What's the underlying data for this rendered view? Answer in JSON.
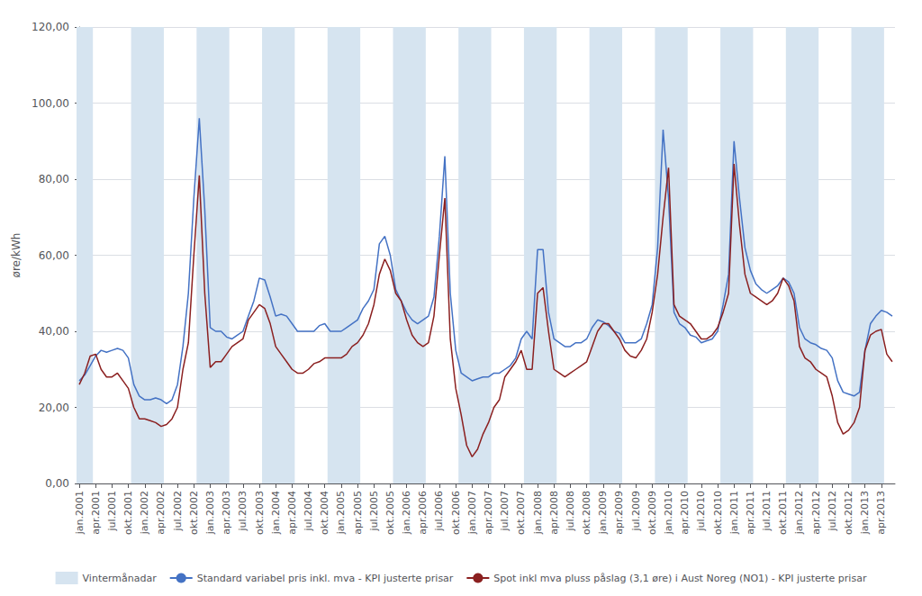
{
  "chart_data": {
    "type": "line",
    "ylabel": "øre/kWh",
    "ylim": [
      0,
      120
    ],
    "yticks": [
      {
        "value": 0,
        "label": "0,00"
      },
      {
        "value": 20,
        "label": "20,00"
      },
      {
        "value": 40,
        "label": "40,00"
      },
      {
        "value": 60,
        "label": "60,00"
      },
      {
        "value": 80,
        "label": "80,00"
      },
      {
        "value": 100,
        "label": "100,00"
      },
      {
        "value": 120,
        "label": "120,00"
      }
    ],
    "grid": true,
    "legend": "bottom",
    "categories": [
      "jan.2001",
      null,
      null,
      "apr.2001",
      null,
      null,
      "jul.2001",
      null,
      null,
      "okt.2001",
      null,
      null,
      "jan.2002",
      null,
      null,
      "apr.2002",
      null,
      null,
      "jul.2002",
      null,
      null,
      "okt.2002",
      null,
      null,
      "jan.2003",
      null,
      null,
      "apr.2003",
      null,
      null,
      "jul.2003",
      null,
      null,
      "okt.2003",
      null,
      null,
      "jan.2004",
      null,
      null,
      "apr.2004",
      null,
      null,
      "jul.2004",
      null,
      null,
      "okt.2004",
      null,
      null,
      "jan.2005",
      null,
      null,
      "apr.2005",
      null,
      null,
      "jul.2005",
      null,
      null,
      "okt.2005",
      null,
      null,
      "jan.2006",
      null,
      null,
      "apr.2006",
      null,
      null,
      "jul.2006",
      null,
      null,
      "okt.2006",
      null,
      null,
      "jan.2007",
      null,
      null,
      "apr.2007",
      null,
      null,
      "jul.2007",
      null,
      null,
      "okt.2007",
      null,
      null,
      "jan.2008",
      null,
      null,
      "apr.2008",
      null,
      null,
      "jul.2008",
      null,
      null,
      "okt.2008",
      null,
      null,
      "jan.2009",
      null,
      null,
      "apr.2009",
      null,
      null,
      "jul.2009",
      null,
      null,
      "okt.2009",
      null,
      null,
      "jan.2010",
      null,
      null,
      "apr.2010",
      null,
      null,
      "jul.2010",
      null,
      null,
      "okt.2010",
      null,
      null,
      "jan.2011",
      null,
      null,
      "apr.2011",
      null,
      null,
      "jul.2011",
      null,
      null,
      "okt.2011",
      null,
      null,
      "jan.2012",
      null,
      null,
      "apr.2012",
      null,
      null,
      "jul.2012",
      null,
      null,
      "okt.2012",
      null,
      null,
      "jan.2013",
      null,
      null,
      "apr.2013",
      null,
      null
    ],
    "series": [
      {
        "name": "Vintermånadar",
        "type": "span",
        "color": "#d6e4f0",
        "spans": [
          [
            -0.5,
            2.5
          ],
          [
            9.5,
            15.5
          ],
          [
            21.5,
            27.5
          ],
          [
            33.5,
            39.5
          ],
          [
            45.5,
            51.5
          ],
          [
            57.5,
            63.5
          ],
          [
            69.5,
            75.5
          ],
          [
            81.5,
            87.5
          ],
          [
            93.5,
            99.5
          ],
          [
            105.5,
            111.5
          ],
          [
            117.5,
            123.5
          ],
          [
            129.5,
            135.5
          ],
          [
            141.5,
            147.5
          ]
        ]
      },
      {
        "name": "Standard variabel pris inkl. mva - KPI justerte prisar",
        "type": "line",
        "color": "#4472C4",
        "values": [
          27.0,
          28.5,
          31.0,
          33.5,
          35.0,
          34.5,
          35.0,
          35.5,
          35.0,
          33.0,
          26.0,
          23.0,
          22.0,
          22.0,
          22.5,
          22.0,
          21.0,
          22.0,
          26.0,
          36.0,
          50.0,
          75.0,
          96.0,
          72.0,
          41.0,
          40.0,
          40.0,
          38.5,
          38.0,
          39.0,
          40.0,
          44.0,
          48.0,
          54.0,
          53.5,
          49.0,
          44.0,
          44.5,
          44.0,
          42.0,
          40.0,
          40.0,
          40.0,
          40.0,
          41.5,
          42.0,
          40.0,
          40.0,
          40.0,
          41.0,
          42.0,
          43.0,
          46.0,
          48.0,
          51.0,
          63.0,
          65.0,
          60.0,
          51.0,
          48.0,
          45.0,
          43.0,
          42.0,
          43.0,
          44.0,
          49.0,
          65.0,
          86.0,
          50.0,
          35.0,
          29.0,
          28.0,
          27.0,
          27.5,
          28.0,
          28.0,
          29.0,
          29.0,
          30.0,
          31.0,
          33.0,
          38.0,
          40.0,
          38.0,
          61.5,
          61.5,
          45.0,
          38.0,
          37.0,
          36.0,
          36.0,
          37.0,
          37.0,
          38.0,
          41.0,
          43.0,
          42.5,
          41.5,
          40.0,
          39.5,
          37.0,
          37.0,
          37.0,
          38.0,
          42.0,
          47.0,
          62.0,
          93.0,
          75.0,
          45.0,
          42.0,
          41.0,
          39.0,
          38.5,
          37.0,
          37.5,
          38.0,
          40.0,
          47.0,
          55.0,
          90.0,
          75.0,
          62.0,
          56.0,
          52.5,
          51.0,
          50.0,
          51.0,
          52.0,
          54.0,
          53.0,
          50.0,
          41.0,
          38.0,
          37.0,
          36.5,
          35.5,
          35.0,
          33.0,
          27.0,
          24.0,
          23.5,
          23.0,
          24.0,
          35.0,
          42.0,
          44.0,
          45.5,
          45.0,
          44.0
        ]
      },
      {
        "name": "Spot inkl mva pluss påslag (3,1 øre) i Aust Noreg (NO1) - KPI justerte prisar",
        "type": "line",
        "color": "#8B2020",
        "values": [
          26.0,
          29.0,
          33.5,
          34.0,
          30.0,
          28.0,
          28.0,
          29.0,
          27.0,
          25.0,
          20.0,
          17.0,
          17.0,
          16.5,
          16.0,
          15.0,
          15.5,
          17.0,
          20.0,
          30.0,
          37.0,
          60.0,
          81.0,
          50.0,
          30.5,
          32.0,
          32.0,
          34.0,
          36.0,
          37.0,
          38.0,
          43.0,
          45.0,
          47.0,
          46.0,
          42.0,
          36.0,
          34.0,
          32.0,
          30.0,
          29.0,
          29.0,
          30.0,
          31.5,
          32.0,
          33.0,
          33.0,
          33.0,
          33.0,
          34.0,
          36.0,
          37.0,
          39.0,
          42.0,
          47.0,
          55.0,
          59.0,
          56.0,
          50.0,
          48.0,
          43.0,
          39.0,
          37.0,
          36.0,
          37.0,
          44.0,
          60.0,
          75.0,
          38.0,
          25.0,
          18.0,
          10.0,
          7.0,
          9.0,
          13.0,
          16.0,
          20.0,
          22.0,
          28.0,
          30.0,
          32.0,
          35.0,
          30.0,
          30.0,
          50.0,
          51.5,
          40.0,
          30.0,
          29.0,
          28.0,
          29.0,
          30.0,
          31.0,
          32.0,
          36.0,
          40.0,
          42.0,
          42.0,
          40.0,
          38.0,
          35.0,
          33.5,
          33.0,
          35.0,
          38.0,
          45.0,
          55.0,
          70.0,
          83.0,
          47.0,
          44.0,
          43.0,
          42.0,
          40.0,
          38.0,
          38.0,
          39.0,
          41.0,
          45.0,
          50.0,
          84.0,
          68.0,
          55.0,
          50.0,
          49.0,
          48.0,
          47.0,
          48.0,
          50.0,
          54.0,
          52.0,
          48.0,
          36.0,
          33.0,
          32.0,
          30.0,
          29.0,
          28.0,
          23.0,
          16.0,
          13.0,
          14.0,
          16.0,
          20.0,
          35.0,
          39.0,
          40.0,
          40.5,
          34.0,
          32.0
        ]
      }
    ]
  }
}
